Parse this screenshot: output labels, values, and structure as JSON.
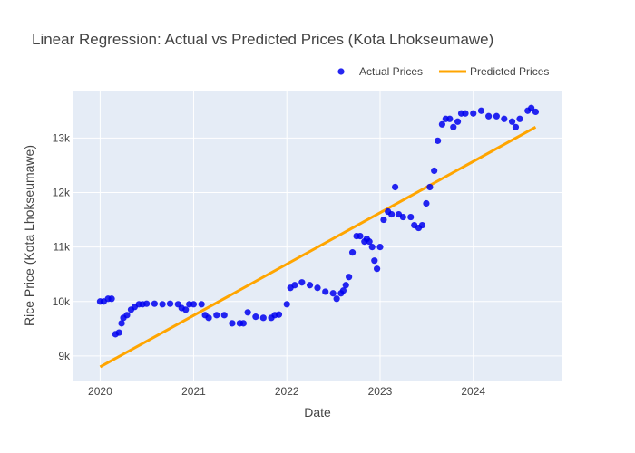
{
  "chart_data": {
    "type": "scatter",
    "title": "Linear Regression: Actual vs Predicted Prices (Kota Lhokseumawe)",
    "xlabel": "Date",
    "ylabel": "Rice Price (Kota Lhokseumawe)",
    "x_ticks": [
      "2020",
      "2021",
      "2022",
      "2023",
      "2024"
    ],
    "y_ticks": [
      "9k",
      "10k",
      "11k",
      "12k",
      "13k"
    ],
    "xlim": [
      "2019-09-15",
      "2024-12-15"
    ],
    "ylim": [
      8550,
      13870
    ],
    "grid": true,
    "legend_position": "top-right",
    "colors": {
      "actual": "#0000ee",
      "predicted": "#ffa500",
      "plot_bg": "#e5ecf6"
    },
    "series": [
      {
        "name": "Actual Prices",
        "type": "scatter",
        "x": [
          "2020-01-01",
          "2020-01-15",
          "2020-02-01",
          "2020-02-15",
          "2020-03-01",
          "2020-03-15",
          "2020-03-25",
          "2020-04-01",
          "2020-04-15",
          "2020-05-01",
          "2020-05-15",
          "2020-06-01",
          "2020-06-15",
          "2020-07-01",
          "2020-08-01",
          "2020-09-01",
          "2020-10-01",
          "2020-11-01",
          "2020-11-15",
          "2020-12-01",
          "2020-12-15",
          "2021-01-01",
          "2021-02-01",
          "2021-02-15",
          "2021-03-01",
          "2021-04-01",
          "2021-05-01",
          "2021-06-01",
          "2021-07-01",
          "2021-07-15",
          "2021-08-01",
          "2021-09-01",
          "2021-10-01",
          "2021-11-01",
          "2021-11-15",
          "2021-12-01",
          "2022-01-01",
          "2022-01-15",
          "2022-02-01",
          "2022-03-01",
          "2022-04-01",
          "2022-05-01",
          "2022-06-01",
          "2022-07-01",
          "2022-07-15",
          "2022-08-01",
          "2022-08-10",
          "2022-08-20",
          "2022-09-01",
          "2022-09-15",
          "2022-10-01",
          "2022-10-15",
          "2022-11-01",
          "2022-11-10",
          "2022-11-20",
          "2022-12-01",
          "2022-12-10",
          "2022-12-20",
          "2023-01-01",
          "2023-01-15",
          "2023-02-01",
          "2023-02-15",
          "2023-03-01",
          "2023-03-15",
          "2023-04-01",
          "2023-05-01",
          "2023-05-15",
          "2023-06-01",
          "2023-06-15",
          "2023-07-01",
          "2023-07-15",
          "2023-08-01",
          "2023-08-15",
          "2023-09-01",
          "2023-09-15",
          "2023-10-01",
          "2023-10-15",
          "2023-11-01",
          "2023-11-15",
          "2023-12-01",
          "2024-01-01",
          "2024-02-01",
          "2024-03-01",
          "2024-04-01",
          "2024-05-01",
          "2024-06-01",
          "2024-06-15",
          "2024-07-01",
          "2024-08-01",
          "2024-08-15",
          "2024-09-01"
        ],
        "y": [
          10000,
          10000,
          10050,
          10050,
          9400,
          9430,
          9600,
          9700,
          9750,
          9850,
          9900,
          9950,
          9950,
          9960,
          9960,
          9950,
          9960,
          9950,
          9880,
          9850,
          9950,
          9950,
          9950,
          9750,
          9700,
          9750,
          9750,
          9600,
          9600,
          9600,
          9800,
          9720,
          9700,
          9700,
          9750,
          9760,
          9950,
          10250,
          10300,
          10350,
          10300,
          10250,
          10180,
          10150,
          10050,
          10150,
          10200,
          10300,
          10450,
          10900,
          11200,
          11200,
          11100,
          11150,
          11100,
          11000,
          10750,
          10600,
          11000,
          11500,
          11650,
          11600,
          12100,
          11600,
          11550,
          11550,
          11400,
          11350,
          11400,
          11800,
          12100,
          12400,
          12950,
          13250,
          13350,
          13350,
          13200,
          13300,
          13450,
          13450,
          13450,
          13500,
          13400,
          13400,
          13350,
          13300,
          13200,
          13350,
          13500,
          13550,
          13480
        ]
      },
      {
        "name": "Predicted Prices",
        "type": "line",
        "x": [
          "2020-01-01",
          "2024-09-01"
        ],
        "y": [
          8800,
          13200
        ]
      }
    ]
  }
}
